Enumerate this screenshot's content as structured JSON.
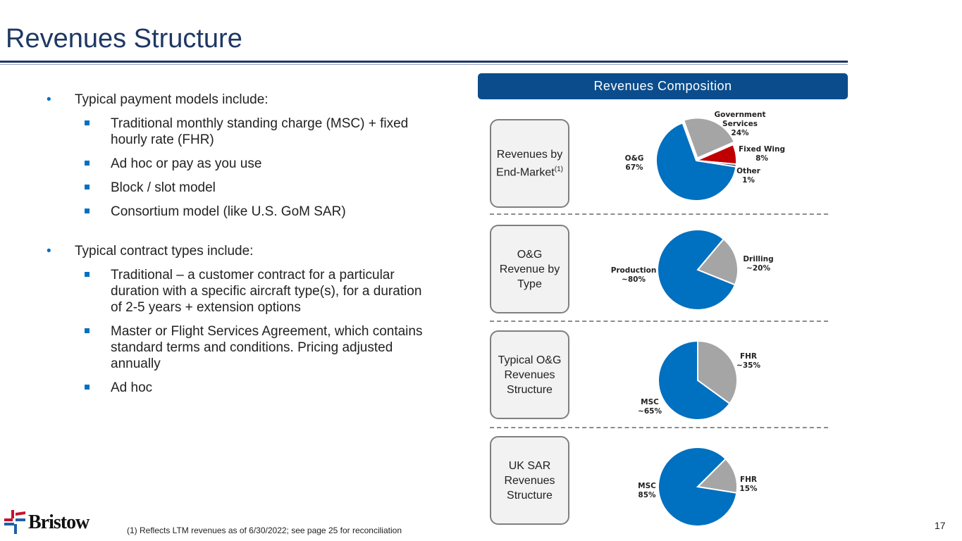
{
  "title": "Revenues Structure",
  "bullets": {
    "b1": "Typical payment models include:",
    "b1_items": [
      "Traditional monthly standing charge (MSC) + fixed hourly rate (FHR)",
      "Ad hoc or pay as you use",
      "Block / slot model",
      "Consortium model (like U.S. GoM SAR)"
    ],
    "b2": "Typical contract types include:",
    "b2_items": [
      "Traditional – a customer contract for a particular duration with a specific aircraft type(s), for a duration of 2-5 years + extension options",
      "Master or Flight Services Agreement, which contains standard terms and conditions. Pricing adjusted annually",
      "Ad hoc"
    ]
  },
  "panel": {
    "header": "Revenues Composition",
    "boxes": [
      "Revenues by End-Market",
      "O&G Revenue by Type",
      "Typical O&G Revenues Structure",
      "UK SAR Revenues Structure"
    ],
    "footnote_mark": "(1)"
  },
  "pies": [
    {
      "slices": [
        {
          "label": "Government\nServices\n24%",
          "value": 24,
          "color": "#a5a5a5"
        },
        {
          "label": "Fixed Wing\n8%",
          "value": 8,
          "color": "#c00000"
        },
        {
          "label": "Other\n1%",
          "value": 1,
          "color": "#1f3864"
        },
        {
          "label": "O&G\n67%",
          "value": 67,
          "color": "#0070c0"
        }
      ]
    },
    {
      "slices": [
        {
          "label": "Drilling\n~20%",
          "value": 20,
          "color": "#a5a5a5"
        },
        {
          "label": "Production\n~80%",
          "value": 80,
          "color": "#0070c0"
        }
      ]
    },
    {
      "slices": [
        {
          "label": "FHR\n~35%",
          "value": 35,
          "color": "#a5a5a5"
        },
        {
          "label": "MSC\n~65%",
          "value": 65,
          "color": "#0070c0"
        }
      ]
    },
    {
      "slices": [
        {
          "label": "FHR\n15%",
          "value": 15,
          "color": "#a5a5a5"
        },
        {
          "label": "MSC\n85%",
          "value": 85,
          "color": "#0070c0"
        }
      ]
    }
  ],
  "footnote": "(1) Reflects LTM revenues as of 6/30/2022; see page 25 for reconciliation",
  "page_number": "17",
  "logo": "Bristow"
}
